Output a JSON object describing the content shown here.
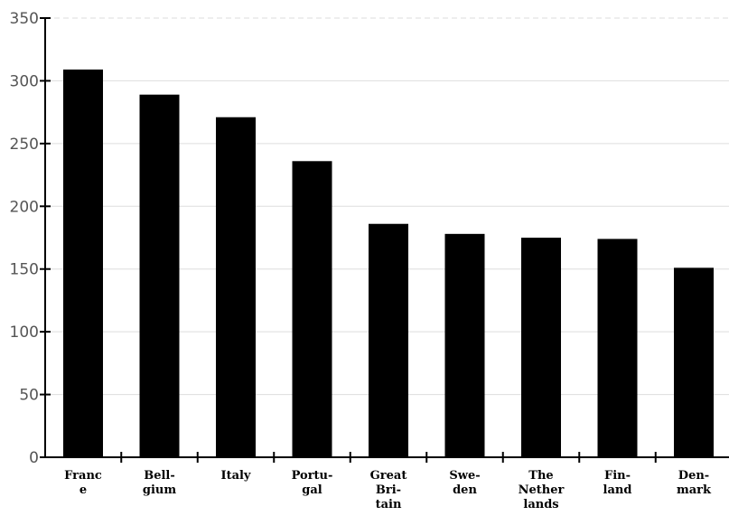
{
  "chart_data": {
    "type": "bar",
    "title": "",
    "xlabel": "",
    "ylabel": "",
    "ylim": [
      0,
      350
    ],
    "yticks": [
      0,
      50,
      100,
      150,
      200,
      250,
      300,
      350
    ],
    "grid": true,
    "categories": [
      [
        "Franc",
        "e"
      ],
      [
        "Bell-",
        "gium"
      ],
      [
        "Italy"
      ],
      [
        "Portu-",
        "gal"
      ],
      [
        "Great",
        "Bri-",
        "tain"
      ],
      [
        "Swe-",
        "den"
      ],
      [
        "The",
        "Nether",
        "lands"
      ],
      [
        "Fin-",
        "land"
      ],
      [
        "Den-",
        "mark"
      ]
    ],
    "values": [
      309,
      289,
      271,
      236,
      186,
      178,
      175,
      174,
      151
    ],
    "bar_color": "#000000",
    "grid_color": "#dddddd",
    "axis_color": "#000000"
  }
}
